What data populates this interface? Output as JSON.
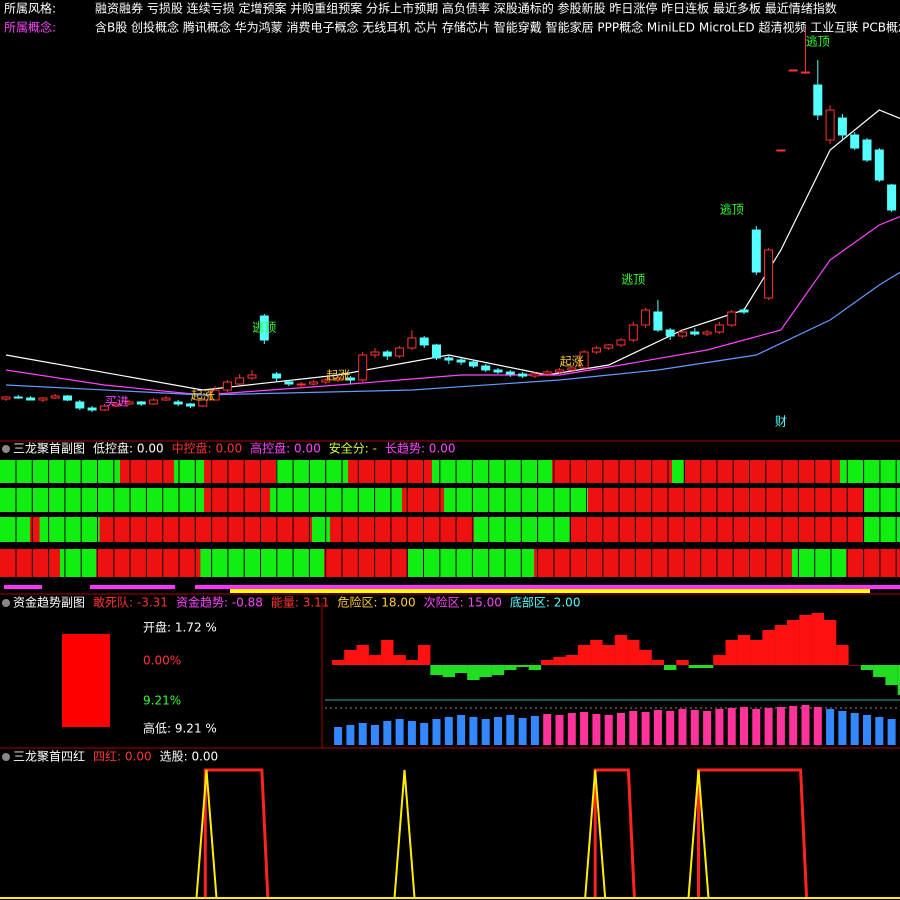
{
  "header": {
    "rows": [
      {
        "label": "所属风格:",
        "label_color": "#ffffff",
        "text": "融资融券 亏损股 连续亏损 定增预案 并购重组预案 分拆上市预期 高负债率 深股通标的 参股新股 昨日涨停 昨日连板 最近多板 最近情绪指数"
      },
      {
        "label": "所属概念:",
        "label_color": "#ff44ff",
        "text": "含B股 创投概念 腾讯概念 华为鸿蒙 消费电子概念 无线耳机 芯片 存储芯片 智能穿戴 智能家居 PPP概念 MiniLED MicroLED 超清视频 工业互联 PCB概念 ..."
      }
    ]
  },
  "price_panel": {
    "candles": [
      [
        41,
        44,
        39,
        43
      ],
      [
        43,
        45,
        41,
        42
      ],
      [
        42,
        44,
        40,
        40
      ],
      [
        40,
        43,
        38,
        42
      ],
      [
        42,
        46,
        41,
        44
      ],
      [
        44,
        45,
        39,
        40
      ],
      [
        38,
        40,
        30,
        32
      ],
      [
        32,
        34,
        28,
        30
      ],
      [
        30,
        36,
        29,
        34
      ],
      [
        34,
        38,
        33,
        36
      ],
      [
        36,
        40,
        35,
        38
      ],
      [
        38,
        39,
        34,
        36
      ],
      [
        36,
        42,
        35,
        40
      ],
      [
        40,
        44,
        39,
        42
      ],
      [
        38,
        40,
        34,
        36
      ],
      [
        36,
        37,
        32,
        34
      ],
      [
        34,
        42,
        33,
        40
      ],
      [
        40,
        54,
        40,
        50
      ],
      [
        50,
        60,
        48,
        58
      ],
      [
        56,
        66,
        55,
        62
      ],
      [
        62,
        70,
        60,
        65
      ],
      [
        124,
        126,
        96,
        100
      ],
      [
        66,
        68,
        58,
        62
      ],
      [
        58,
        60,
        54,
        56
      ],
      [
        56,
        58,
        52,
        56
      ],
      [
        56,
        60,
        55,
        58
      ],
      [
        58,
        62,
        56,
        60
      ],
      [
        60,
        64,
        58,
        62
      ],
      [
        62,
        64,
        56,
        60
      ],
      [
        60,
        88,
        58,
        85
      ],
      [
        85,
        92,
        82,
        88
      ],
      [
        88,
        90,
        80,
        84
      ],
      [
        84,
        94,
        82,
        92
      ],
      [
        92,
        110,
        90,
        102
      ],
      [
        102,
        104,
        92,
        95
      ],
      [
        95,
        96,
        80,
        82
      ],
      [
        82,
        84,
        76,
        80
      ],
      [
        80,
        82,
        75,
        78
      ],
      [
        78,
        80,
        72,
        74
      ],
      [
        74,
        76,
        68,
        70
      ],
      [
        70,
        72,
        66,
        68
      ],
      [
        68,
        70,
        63,
        66
      ],
      [
        66,
        68,
        62,
        64
      ],
      [
        64,
        68,
        62,
        66
      ],
      [
        66,
        70,
        64,
        68
      ],
      [
        68,
        72,
        66,
        70
      ],
      [
        70,
        74,
        68,
        72
      ],
      [
        72,
        90,
        70,
        88
      ],
      [
        88,
        94,
        86,
        92
      ],
      [
        92,
        96,
        90,
        95
      ],
      [
        95,
        102,
        93,
        100
      ],
      [
        100,
        118,
        98,
        115
      ],
      [
        115,
        132,
        112,
        130
      ],
      [
        128,
        140,
        108,
        110
      ],
      [
        110,
        112,
        100,
        104
      ],
      [
        104,
        110,
        102,
        108
      ],
      [
        108,
        112,
        104,
        106
      ],
      [
        106,
        110,
        104,
        108
      ],
      [
        108,
        118,
        106,
        115
      ],
      [
        115,
        130,
        113,
        128
      ],
      [
        130,
        132,
        126,
        128
      ],
      [
        210,
        214,
        165,
        168
      ],
      [
        142,
        192,
        140,
        190
      ],
      [
        290,
        290,
        290,
        290
      ],
      [
        370,
        370,
        370,
        370
      ],
      [
        368,
        410,
        366,
        368
      ],
      [
        355,
        380,
        320,
        325
      ],
      [
        300,
        335,
        296,
        330
      ],
      [
        322,
        326,
        300,
        305
      ],
      [
        305,
        308,
        290,
        292
      ],
      [
        300,
        302,
        278,
        280
      ],
      [
        290,
        292,
        258,
        260
      ],
      [
        255,
        256,
        228,
        230
      ]
    ],
    "up_color": "#ff3333",
    "down_color": "#54ffff",
    "lines": [
      {
        "color": "#ffffff",
        "x": [
          0,
          16,
          27,
          36,
          44,
          49,
          55,
          60,
          63,
          67,
          71,
          73
        ],
        "values": [
          85,
          50,
          65,
          85,
          65,
          75,
          110,
          130,
          190,
          290,
          330,
          320
        ]
      },
      {
        "color": "#ff44ff",
        "x": [
          0,
          8,
          16,
          27,
          37,
          45,
          50,
          57,
          63,
          67,
          71,
          73
        ],
        "values": [
          70,
          55,
          45,
          55,
          65,
          65,
          75,
          90,
          110,
          180,
          215,
          225
        ]
      },
      {
        "color": "#6699ff",
        "x": [
          0,
          16,
          33,
          45,
          53,
          61,
          67,
          71,
          73
        ],
        "values": [
          55,
          45,
          50,
          60,
          70,
          85,
          120,
          155,
          170
        ]
      }
    ],
    "annotations": [
      {
        "text": "逃顶",
        "index": 21,
        "price": 100,
        "color": "#33ff33"
      },
      {
        "text": "逃顶",
        "index": 51,
        "price": 148,
        "color": "#33ff33"
      },
      {
        "text": "逃顶",
        "index": 59,
        "price": 218,
        "color": "#33ff33"
      },
      {
        "text": "逃顶",
        "index": 66,
        "price": 386,
        "color": "#33ff33"
      },
      {
        "text": "起涨",
        "index": 16,
        "price": 32,
        "color": "#ffcc33"
      },
      {
        "text": "起涨",
        "index": 27,
        "price": 52,
        "color": "#ffcc33"
      },
      {
        "text": "起涨",
        "index": 46,
        "price": 66,
        "color": "#ffcc33"
      },
      {
        "text": "买进",
        "index": 9,
        "price": 26,
        "color": "#ff44ff"
      },
      {
        "text": "财",
        "index": 63,
        "price": 6,
        "color": "#54ffff"
      }
    ]
  },
  "panel2": {
    "title": "三龙聚首副图",
    "indicators": [
      {
        "text": "低控盘: 0.00",
        "color": "#ffffff"
      },
      {
        "text": "中控盘: 0.00",
        "color": "#ff3333"
      },
      {
        "text": "高控盘: 0.00",
        "color": "#ff44ff"
      },
      {
        "text": "安全分: -",
        "color": "#ccff33"
      },
      {
        "text": "长趋势: 0.00",
        "color": "#ff44ff"
      }
    ],
    "rows": [
      [
        [
          10,
          14.5
        ],
        [
          17,
          23
        ],
        [
          29,
          36
        ],
        [
          46,
          56
        ],
        [
          57,
          70
        ]
      ],
      [
        [
          17,
          22.5
        ],
        [
          33.5,
          37
        ],
        [
          49,
          72
        ]
      ],
      [
        [
          2.5,
          3.3
        ],
        [
          8.3,
          26
        ],
        [
          27.5,
          39.5
        ],
        [
          47.5,
          72
        ]
      ],
      [
        [
          0,
          5
        ],
        [
          8,
          16.7
        ],
        [
          27,
          34
        ],
        [
          44.5,
          66
        ],
        [
          70.5,
          75
        ]
      ]
    ],
    "red": "#ee1111",
    "green": "#11ee11"
  },
  "panel3": {
    "title": "资金趋势副图",
    "indicators": [
      {
        "text": "敢死队: -3.31",
        "color": "#ff3333"
      },
      {
        "text": "资金趋势: -0.88",
        "color": "#ff44ff"
      },
      {
        "text": "能量: 3.11",
        "color": "#ff3333"
      },
      {
        "text": "危险区: 18.00",
        "color": "#ffcc33"
      },
      {
        "text": "次险区: 15.00",
        "color": "#ff44ff"
      },
      {
        "text": "底部区: 2.00",
        "color": "#54ffff"
      }
    ],
    "box": [
      {
        "text": "开盘:  1.72 %",
        "color": "#ffffff"
      },
      {
        "text": "0.00%",
        "color": "#ff3333"
      },
      {
        "text": "9.21%",
        "color": "#33ff33"
      },
      {
        "text": "高低:  9.21 %",
        "color": "#ffffff"
      }
    ],
    "start_index": 27,
    "flow": [
      5,
      15,
      20,
      10,
      25,
      10,
      5,
      20,
      -10,
      -12,
      -8,
      -15,
      -12,
      -10,
      -5,
      -2,
      -5,
      5,
      8,
      10,
      20,
      25,
      20,
      30,
      25,
      15,
      5,
      -5,
      5,
      -3,
      -3,
      10,
      25,
      30,
      25,
      35,
      40,
      45,
      50,
      52,
      45,
      20,
      0,
      -5,
      -12,
      -20,
      -30,
      -40
    ],
    "bars": [
      18,
      20,
      22,
      20,
      24,
      26,
      24,
      22,
      26,
      28,
      30,
      28,
      26,
      28,
      30,
      27,
      29,
      31,
      30,
      32,
      33,
      31,
      30,
      32,
      34,
      33,
      35,
      34,
      36,
      35,
      34,
      36,
      37,
      38,
      36,
      37,
      38,
      39,
      40,
      38,
      36,
      34,
      32,
      30,
      28,
      26,
      24,
      22
    ],
    "pink_range": [
      44,
      66
    ],
    "pink": "#ff3399",
    "blue": "#3388ff"
  },
  "panel4": {
    "title": "三龙聚首四红",
    "indicators": [
      {
        "text": "四红: 0.00",
        "color": "#ff3333"
      },
      {
        "text": "选股: 0.00",
        "color": "#ffffff"
      }
    ],
    "four_red": [
      [
        16.2,
        20.8
      ],
      [
        47.9,
        50.6
      ],
      [
        56.3,
        64.6
      ]
    ],
    "select": [
      16.3,
      32.4,
      47.9,
      56.3
    ]
  }
}
